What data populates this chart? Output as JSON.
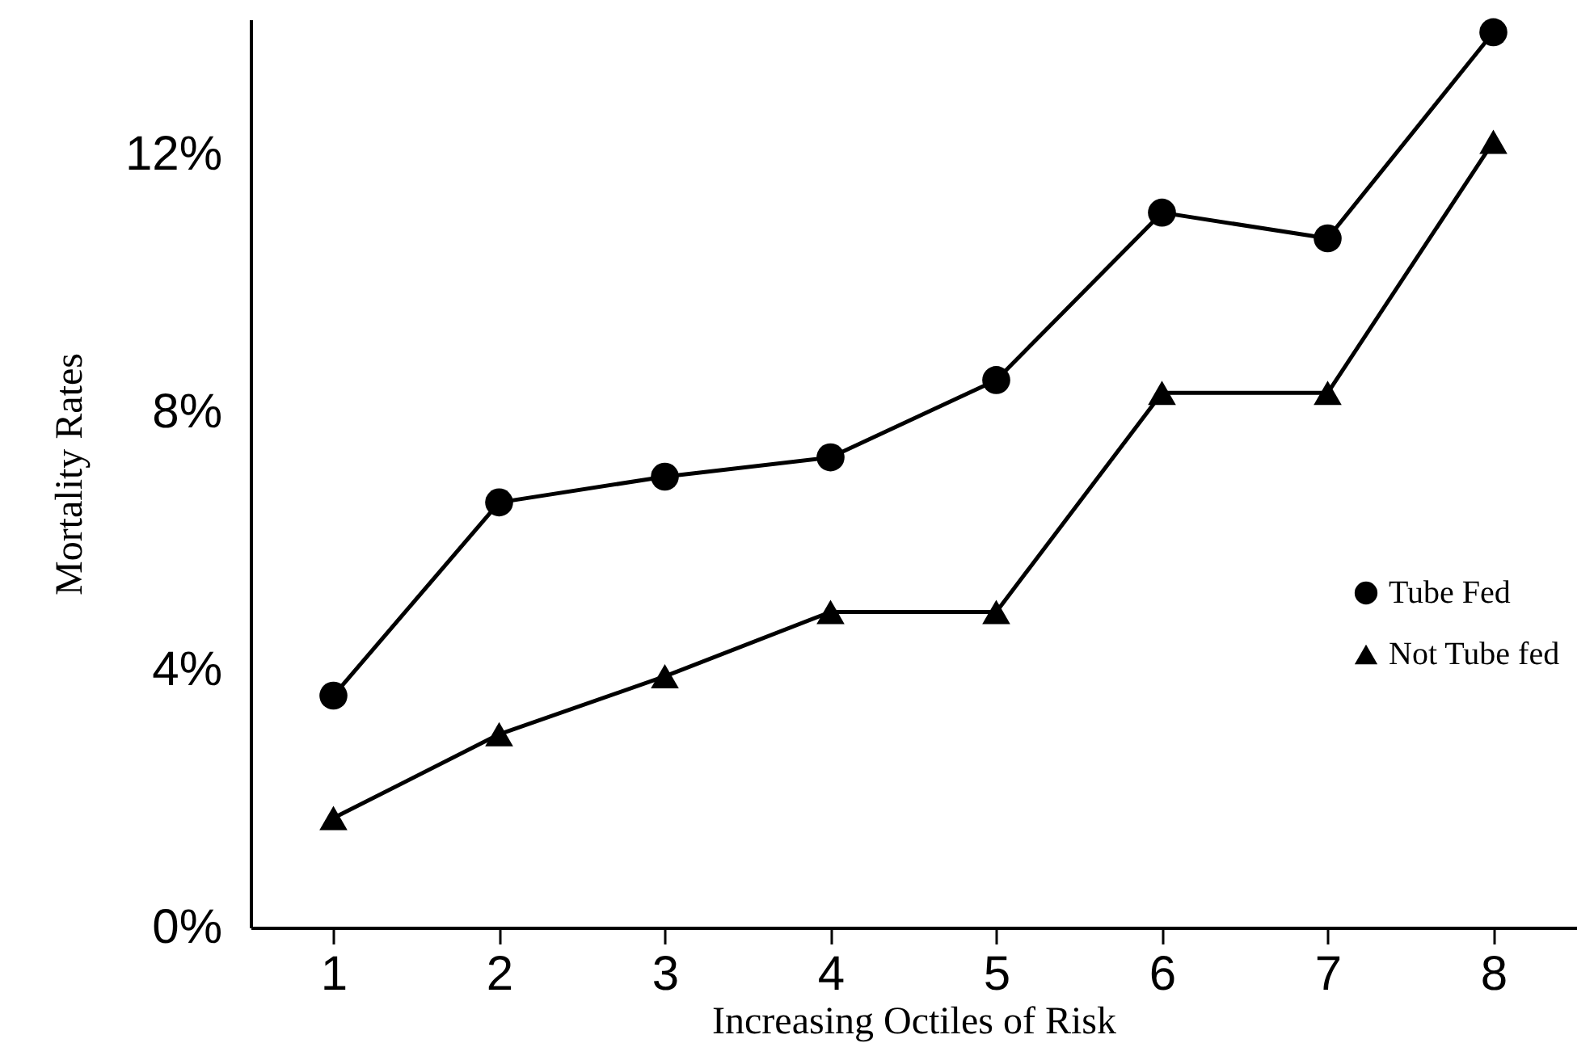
{
  "chart_data": {
    "type": "line",
    "xlabel": "Increasing Octiles of  Risk",
    "ylabel": "Mortality Rates",
    "x": [
      1,
      2,
      3,
      4,
      5,
      6,
      7,
      8
    ],
    "series": [
      {
        "name": "Tube Fed",
        "color": "#000000",
        "marker": "circle",
        "values": [
          3.6,
          6.6,
          7.0,
          7.3,
          8.5,
          11.1,
          10.7,
          13.9
        ]
      },
      {
        "name": "Not Tube fed",
        "color": "#000000",
        "marker": "triangle",
        "values": [
          1.7,
          3.0,
          3.9,
          4.9,
          4.9,
          8.3,
          8.3,
          12.2
        ]
      }
    ],
    "xlim": [
      0.5,
      8.5
    ],
    "xticks": [
      1,
      2,
      3,
      4,
      5,
      6,
      7,
      8
    ],
    "ylim": [
      0,
      14.1
    ],
    "yticks": [
      {
        "value": 0,
        "label": "0%"
      },
      {
        "value": 4,
        "label": "4%"
      },
      {
        "value": 8,
        "label": "8%"
      },
      {
        "value": 12,
        "label": "12%"
      }
    ],
    "grid": false,
    "legend": "right",
    "line_style": "solid"
  }
}
